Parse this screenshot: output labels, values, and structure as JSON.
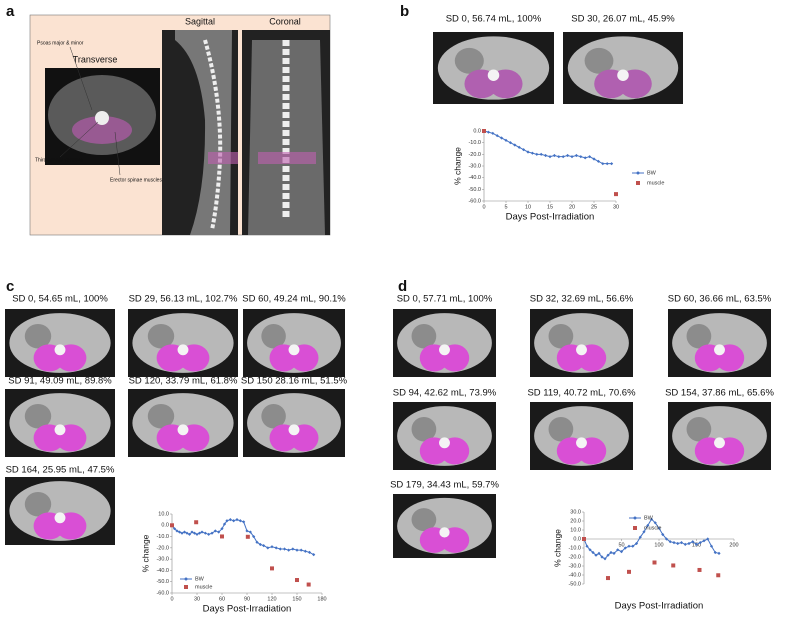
{
  "panels": [
    {
      "label": "a",
      "titles": [
        "Transverse",
        "Sagittal",
        "Coronal"
      ],
      "annotations": [
        "Psoas major & minor",
        "Third lumbar vertebra",
        "Erector spinae muscles"
      ]
    },
    {
      "label": "b",
      "captions": [
        "SD 0, 56.74 mL, 100%",
        "SD 30, 26.07 mL, 45.9%"
      ],
      "chart": {
        "type": "line",
        "xlabel": "Days Post-Irradiation",
        "ylabel": "% change",
        "xlim": [
          0,
          30
        ],
        "ylim": [
          -60,
          0
        ],
        "xticks": [
          0,
          5,
          10,
          15,
          20,
          25,
          30
        ],
        "yticks": [
          {
            "value": 0,
            "label": "0.0"
          },
          {
            "value": -10,
            "label": "-10.0"
          },
          {
            "value": -20,
            "label": "-20.0"
          },
          {
            "value": -30,
            "label": "-30.0"
          },
          {
            "value": -40,
            "label": "-40.0"
          },
          {
            "value": -50,
            "label": "-50.0"
          },
          {
            "value": -60,
            "label": "-60.0"
          }
        ],
        "legend": "right",
        "series": [
          {
            "name": "BW",
            "color": "#4472c4",
            "mode": "line",
            "x": [
              0,
              1,
              2,
              3,
              4,
              5,
              6,
              7,
              8,
              9,
              10,
              11,
              12,
              13,
              14,
              15,
              16,
              17,
              18,
              19,
              20,
              21,
              22,
              23,
              24,
              25,
              26,
              27,
              28,
              29
            ],
            "values": [
              0,
              -1,
              -2,
              -4,
              -6,
              -8,
              -10,
              -12,
              -14,
              -16,
              -18,
              -19,
              -20,
              -20,
              -21,
              -22,
              -21,
              -22,
              -22,
              -21,
              -22,
              -21,
              -22,
              -23,
              -22,
              -24,
              -26,
              -28,
              -28,
              -28
            ]
          },
          {
            "name": "muscle",
            "color": "#c0504d",
            "mode": "markers",
            "x": [
              0,
              30
            ],
            "values": [
              0,
              -54.1
            ]
          }
        ]
      }
    },
    {
      "label": "c",
      "captions": [
        "SD 0, 54.65 mL, 100%",
        "SD 29, 56.13 mL, 102.7%",
        "SD 60, 49.24 mL, 90.1%",
        "SD 91, 49.09 mL, 89.8%",
        "SD 120, 33.79 mL, 61.8%",
        "SD 150 28.16 mL, 51.5%",
        "SD 164, 25.95 mL, 47.5%"
      ],
      "chart": {
        "type": "line",
        "xlabel": "Days Post-Irradiation",
        "ylabel": "% change",
        "xlim": [
          0,
          180
        ],
        "ylim": [
          -60,
          10
        ],
        "xticks": [
          0,
          30,
          60,
          90,
          120,
          150,
          180
        ],
        "yticks": [
          {
            "value": 10,
            "label": "10.0"
          },
          {
            "value": 0,
            "label": "0.0"
          },
          {
            "value": -10,
            "label": "-10.0"
          },
          {
            "value": -20,
            "label": "-20.0"
          },
          {
            "value": -30,
            "label": "-30.0"
          },
          {
            "value": -40,
            "label": "-40.0"
          },
          {
            "value": -50,
            "label": "-50.0"
          },
          {
            "value": -60,
            "label": "-60.0"
          }
        ],
        "legend": "lower left",
        "series": [
          {
            "name": "BW",
            "color": "#4472c4",
            "mode": "line",
            "x": [
              0,
              3,
              6,
              9,
              12,
              15,
              18,
              21,
              24,
              27,
              30,
              33,
              36,
              40,
              44,
              48,
              52,
              56,
              60,
              63,
              66,
              70,
              74,
              78,
              82,
              86,
              90,
              94,
              98,
              102,
              106,
              110,
              115,
              120,
              125,
              130,
              135,
              140,
              145,
              150,
              155,
              160,
              165,
              170
            ],
            "values": [
              0,
              -3,
              -5,
              -6,
              -7,
              -6,
              -7,
              -8,
              -6,
              -7,
              -8,
              -7,
              -6,
              -7,
              -8,
              -7,
              -5,
              -6,
              -3,
              1,
              4,
              5,
              4,
              5,
              4,
              3,
              -5,
              -6,
              -10,
              -15,
              -17,
              -18,
              -20,
              -19,
              -20,
              -21,
              -21,
              -22,
              -21,
              -22,
              -22,
              -23,
              -24,
              -26
            ]
          },
          {
            "name": "muscle",
            "color": "#c0504d",
            "mode": "markers",
            "x": [
              0,
              29,
              60,
              91,
              120,
              150,
              164
            ],
            "values": [
              0,
              2.7,
              -9.9,
              -10.2,
              -38.2,
              -48.5,
              -52.5
            ]
          }
        ]
      }
    },
    {
      "label": "d",
      "captions": [
        "SD 0, 57.71 mL, 100%",
        "SD 32, 32.69 mL, 56.6%",
        "SD 60, 36.66 mL, 63.5%",
        "SD 94, 42.62 mL, 73.9%",
        "SD 119, 40.72 mL, 70.6%",
        "SD 154, 37.86 mL, 65.6%",
        "SD 179, 34.43 mL, 59.7%"
      ],
      "chart": {
        "type": "line",
        "xlabel": "Days Post-Irradiation",
        "ylabel": "% change",
        "xlim": [
          0,
          200
        ],
        "ylim": [
          -50,
          30
        ],
        "xticks": [
          50,
          100,
          150,
          200
        ],
        "xaxis_at_zero": true,
        "yticks": [
          {
            "value": 30,
            "label": "30.0"
          },
          {
            "value": 20,
            "label": "20.0"
          },
          {
            "value": 10,
            "label": "10.0"
          },
          {
            "value": 0,
            "label": "0.0"
          },
          {
            "value": -10,
            "label": "-10.0"
          },
          {
            "value": -20,
            "label": "-20.0"
          },
          {
            "value": -30,
            "label": "-30.0"
          },
          {
            "value": -40,
            "label": "-40.0"
          },
          {
            "value": -50,
            "label": "-50.0"
          }
        ],
        "legend": "upper center",
        "series": [
          {
            "name": "BW",
            "color": "#4472c4",
            "mode": "line",
            "x": [
              0,
              4,
              8,
              12,
              16,
              20,
              24,
              28,
              32,
              36,
              40,
              45,
              50,
              55,
              60,
              65,
              70,
              75,
              80,
              85,
              90,
              95,
              100,
              105,
              110,
              115,
              120,
              125,
              130,
              135,
              140,
              145,
              150,
              155,
              160,
              165,
              170,
              175,
              180
            ],
            "values": [
              0,
              -8,
              -12,
              -15,
              -18,
              -16,
              -20,
              -22,
              -18,
              -15,
              -16,
              -12,
              -14,
              -10,
              -8,
              -8,
              -5,
              2,
              8,
              15,
              22,
              18,
              12,
              5,
              0,
              -3,
              -4,
              -5,
              -4,
              -6,
              -5,
              -3,
              -6,
              -4,
              -2,
              0,
              -8,
              -15,
              -16
            ]
          },
          {
            "name": "muscle",
            "color": "#c0504d",
            "mode": "markers",
            "x": [
              0,
              32,
              60,
              94,
              119,
              154,
              179
            ],
            "values": [
              0,
              -43.4,
              -36.5,
              -26.1,
              -29.4,
              -34.4,
              -40.3
            ]
          }
        ]
      }
    }
  ]
}
